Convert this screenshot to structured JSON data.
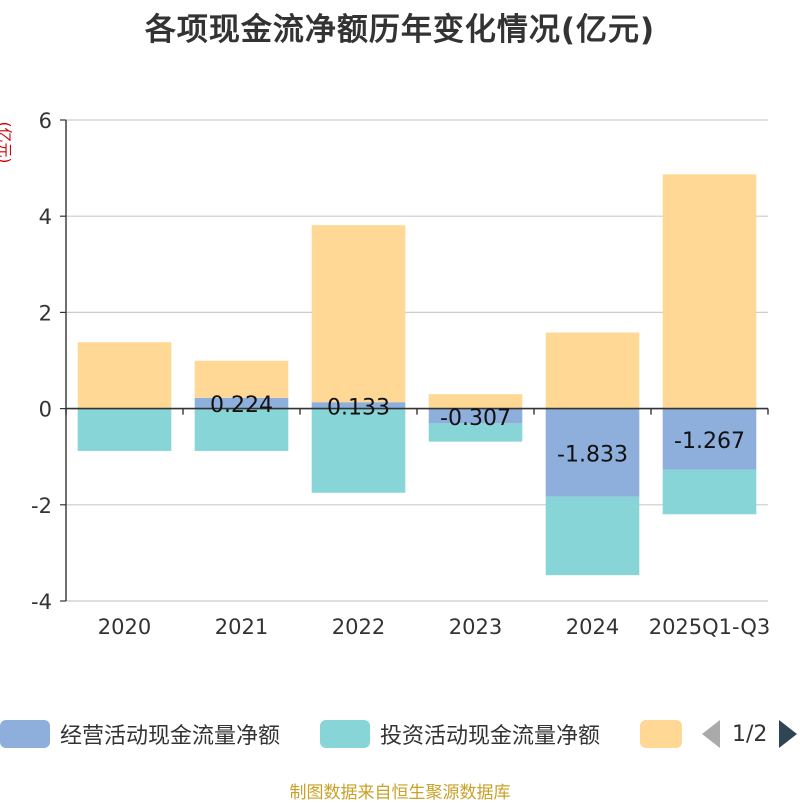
{
  "title": "各项现金流净额历年变化情况(亿元)",
  "unit_label": "(亿元)",
  "source_text": "制图数据来自恒生聚源数据库",
  "legend": {
    "items": [
      {
        "label": "经营活动现金流量净额",
        "color": "#8eaedb"
      },
      {
        "label": "投资活动现金流量净额",
        "color": "#88d5d8"
      },
      {
        "label": "",
        "color": "#fed894"
      }
    ],
    "page_text": "1/2"
  },
  "chart_data": {
    "type": "bar",
    "stacked": true,
    "title": "各项现金流净额历年变化情况(亿元)",
    "ylabel": "(亿元)",
    "xlabel": "",
    "ylim": [
      -4,
      6
    ],
    "yticks": [
      -4,
      -2,
      0,
      2,
      4,
      6
    ],
    "grid": true,
    "categories": [
      "2020",
      "2021",
      "2022",
      "2023",
      "2024",
      "2025Q1-Q3"
    ],
    "series": [
      {
        "name": "经营活动现金流量净额",
        "color": "#8eaedb",
        "values": [
          0,
          0.224,
          0.133,
          -0.307,
          -1.833,
          -1.267
        ],
        "labels": [
          "",
          "0.224",
          "0.133",
          "-0.307",
          "-1.833",
          "-1.267"
        ]
      },
      {
        "name": "投资活动现金流量净额",
        "color": "#88d5d8",
        "values": [
          -0.88,
          -0.88,
          -1.75,
          -0.38,
          -1.63,
          -0.93
        ]
      },
      {
        "name": "",
        "color": "#fed894",
        "values": [
          1.38,
          0.77,
          3.68,
          0.3,
          1.58,
          4.87
        ]
      }
    ]
  }
}
